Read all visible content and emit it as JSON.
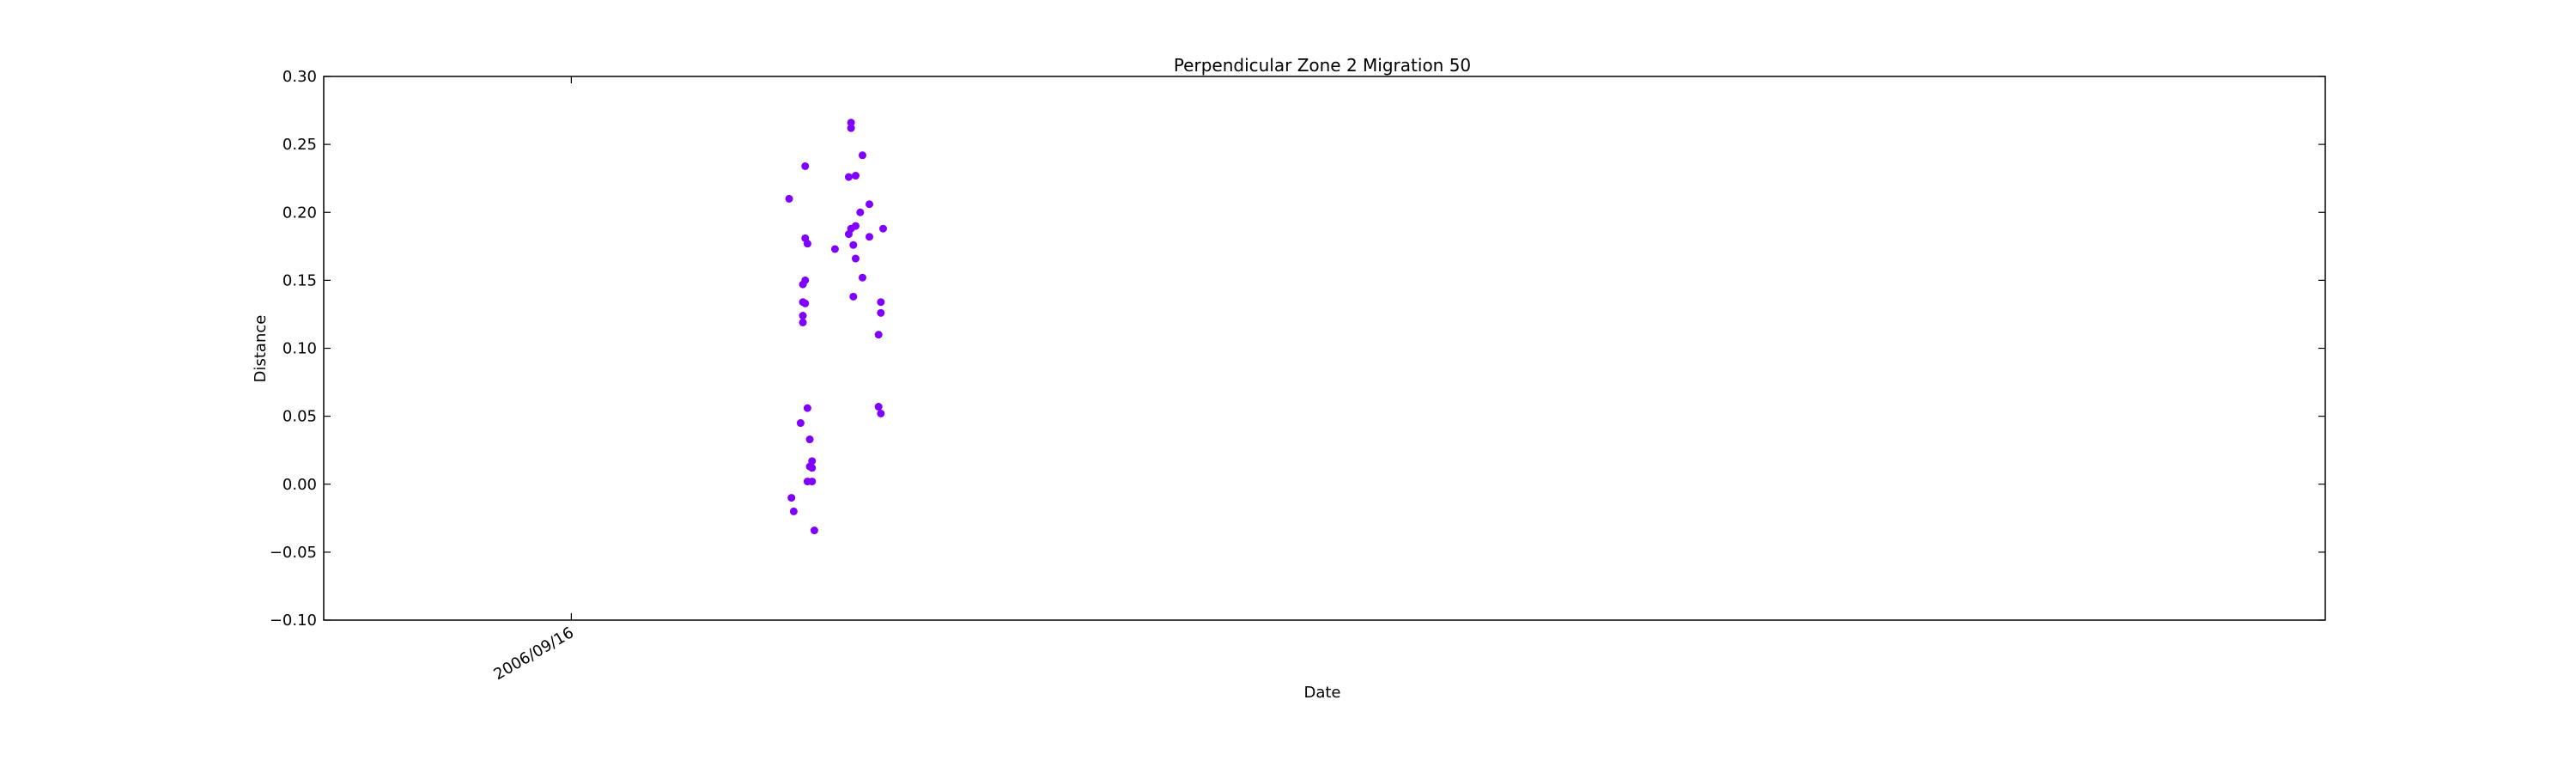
{
  "chart_data": {
    "type": "scatter",
    "title": "Perpendicular Zone 2 Migration 50",
    "xlabel": "Date",
    "ylabel": "Distance",
    "ylim": [
      -0.1,
      0.3
    ],
    "y_ticks": [
      "−0.10",
      "−0.05",
      "0.00",
      "0.05",
      "0.10",
      "0.15",
      "0.20",
      "0.25",
      "0.30"
    ],
    "y_tick_values": [
      -0.1,
      -0.05,
      0.0,
      0.05,
      0.1,
      0.15,
      0.2,
      0.25,
      0.3
    ],
    "xlim": [
      "2006-05-31",
      "2008-10-20"
    ],
    "x_ticks": [
      {
        "label": "2006/09/16",
        "date": "2006-09-16"
      }
    ],
    "grid": false,
    "color": "#7f00ff",
    "points": [
      {
        "x": "2006-12-20",
        "y": 0.21
      },
      {
        "x": "2006-12-21",
        "y": -0.01
      },
      {
        "x": "2006-12-22",
        "y": -0.02
      },
      {
        "x": "2006-12-25",
        "y": 0.045
      },
      {
        "x": "2006-12-26",
        "y": 0.147
      },
      {
        "x": "2006-12-26",
        "y": 0.134
      },
      {
        "x": "2006-12-26",
        "y": 0.124
      },
      {
        "x": "2006-12-26",
        "y": 0.119
      },
      {
        "x": "2006-12-27",
        "y": 0.234
      },
      {
        "x": "2006-12-27",
        "y": 0.181
      },
      {
        "x": "2006-12-27",
        "y": 0.15
      },
      {
        "x": "2006-12-27",
        "y": 0.133
      },
      {
        "x": "2006-12-28",
        "y": 0.177
      },
      {
        "x": "2006-12-28",
        "y": 0.056
      },
      {
        "x": "2006-12-28",
        "y": 0.002
      },
      {
        "x": "2006-12-29",
        "y": 0.033
      },
      {
        "x": "2006-12-29",
        "y": 0.013
      },
      {
        "x": "2006-12-30",
        "y": 0.017
      },
      {
        "x": "2006-12-30",
        "y": 0.012
      },
      {
        "x": "2006-12-30",
        "y": 0.002
      },
      {
        "x": "2006-12-31",
        "y": -0.034
      },
      {
        "x": "2007-01-09",
        "y": 0.173
      },
      {
        "x": "2007-01-15",
        "y": 0.226
      },
      {
        "x": "2007-01-15",
        "y": 0.184
      },
      {
        "x": "2007-01-16",
        "y": 0.266
      },
      {
        "x": "2007-01-16",
        "y": 0.262
      },
      {
        "x": "2007-01-16",
        "y": 0.188
      },
      {
        "x": "2007-01-17",
        "y": 0.138
      },
      {
        "x": "2007-01-17",
        "y": 0.176
      },
      {
        "x": "2007-01-18",
        "y": 0.227
      },
      {
        "x": "2007-01-18",
        "y": 0.19
      },
      {
        "x": "2007-01-18",
        "y": 0.166
      },
      {
        "x": "2007-01-20",
        "y": 0.2
      },
      {
        "x": "2007-01-21",
        "y": 0.242
      },
      {
        "x": "2007-01-21",
        "y": 0.152
      },
      {
        "x": "2007-01-24",
        "y": 0.206
      },
      {
        "x": "2007-01-24",
        "y": 0.182
      },
      {
        "x": "2007-01-28",
        "y": 0.057
      },
      {
        "x": "2007-01-28",
        "y": 0.11
      },
      {
        "x": "2007-01-29",
        "y": 0.134
      },
      {
        "x": "2007-01-29",
        "y": 0.126
      },
      {
        "x": "2007-01-29",
        "y": 0.052
      },
      {
        "x": "2007-01-30",
        "y": 0.188
      }
    ]
  }
}
